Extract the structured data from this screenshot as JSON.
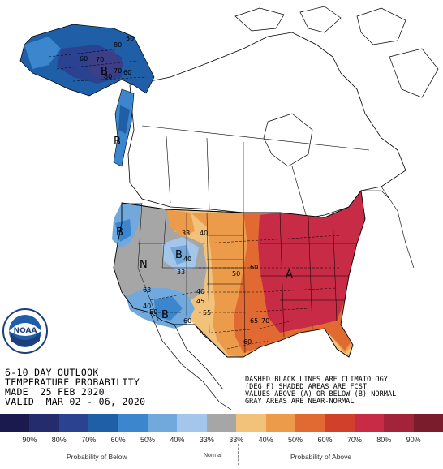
{
  "text": {
    "line1": "6-10 DAY OUTLOOK",
    "line2": "TEMPERATURE PROBABILITY",
    "line3": "MADE  25 FEB 2020",
    "line4": "VALID  MAR 02 - 06, 2020"
  },
  "note": {
    "line1": "DASHED BLACK LINES ARE CLIMATOLOGY",
    "line2": "(DEG F) SHADED AREAS ARE FCST",
    "line3": "VALUES ABOVE (A) OR BELOW (B) NORMAL",
    "line4": "GRAY AREAS ARE NEAR-NORMAL"
  },
  "map_labels": {
    "below_alaska": "B",
    "below_nw": "B",
    "below_rockies": "B",
    "below_southwest": "B",
    "near_normal": "N",
    "above_east": "A",
    "c60a": "60",
    "c70a": "70",
    "c70b": "70",
    "c80": "80",
    "c60b": "60",
    "c50a": "50",
    "c80b": "80",
    "c33a": "33",
    "c40a": "40",
    "c40b": "40",
    "c33b": "33",
    "c50b": "50",
    "c60c": "60",
    "c63": "63",
    "c40c": "40",
    "c50c": "50",
    "c60d": "60",
    "c65": "65",
    "c70c": "70",
    "c40d": "40",
    "c45": "45",
    "c55": "55",
    "c60e": "60"
  },
  "legend": {
    "labels": [
      "90%",
      "80%",
      "70%",
      "60%",
      "50%",
      "40%",
      "33%",
      "33%",
      "40%",
      "50%",
      "60%",
      "70%",
      "80%",
      "90%"
    ],
    "below_title": "Probability of Below",
    "normal_title": "Normal",
    "above_title": "Probability of Above",
    "colors": [
      "#1b1a4f",
      "#252c6e",
      "#2b4290",
      "#1f5fa8",
      "#3b86cc",
      "#72a9dc",
      "#a3c6ea",
      "#a6a6a6",
      "#f2c17a",
      "#ec9b4a",
      "#e06a32",
      "#d1402a",
      "#c72b45",
      "#a3233a",
      "#7a1c2c"
    ]
  },
  "logo": {
    "name": "NOAA"
  }
}
